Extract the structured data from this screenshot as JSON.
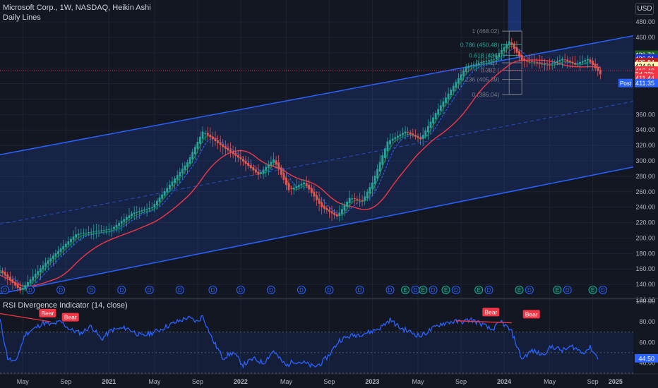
{
  "header": {
    "title": "Microsoft Corp., 1W, NASDAQ, Heikin Ashi",
    "subtitle": "Daily Lines",
    "currency": "USD"
  },
  "rsi_panel": {
    "title": "RSI Divergence Indicator (14, close)",
    "bear_label": "Bear"
  },
  "fib_labels": {
    "level_1": "1 (468.02)",
    "level_0786": "0.786 (450.48)",
    "level_0618": "0.618 (436.",
    "level_05": "0.5 (427.",
    "level_0382": "0.382 (",
    "level_0236": "0.236 (405.39)",
    "level_0": "0 (386.04)"
  },
  "price_badges": [
    {
      "text": "430.72",
      "bg": "#1b5e20",
      "fg": "#ffffff",
      "price": 437.5
    },
    {
      "text": "426.31",
      "bg": "#1e2fd6",
      "fg": "#ffffff",
      "price": 432.6
    },
    {
      "text": "425.84",
      "bg": "#b71c1c",
      "fg": "#ffffff",
      "price": 427.8
    },
    {
      "text": "424.94",
      "bg": "#fff3b0",
      "fg": "#000000",
      "price": 422.8
    },
    {
      "text": "412.48",
      "bg": "#f23645",
      "fg": "#ffffff",
      "price": 417.0
    },
    {
      "text": "2d 23h",
      "bg": "#f23645",
      "fg": "#ffffff",
      "price": 412.2
    },
    {
      "text": "411.44",
      "bg": "#f23645",
      "fg": "#ffffff",
      "price": 407.3
    }
  ],
  "post_badge": {
    "tag": "Post",
    "value": "411.35",
    "price": 400.8
  },
  "rsi_badge": {
    "text": "44.50",
    "value": 44.5
  },
  "event_markers": {
    "dividend": "D",
    "earnings": "E"
  },
  "chart_data": [
    {
      "type": "candlestick",
      "title": "Microsoft Corp., 1W, NASDAQ, Heikin Ashi",
      "ylim": [
        120,
        480
      ],
      "y_ticks": [
        120,
        140,
        160,
        180,
        200,
        220,
        240,
        260,
        280,
        300,
        320,
        340,
        360,
        380,
        400,
        420,
        440,
        460,
        480
      ],
      "x_ticks": [
        "May",
        "Sep",
        "2021",
        "May",
        "Sep",
        "2022",
        "May",
        "Sep",
        "2023",
        "May",
        "Sep",
        "2024",
        "May",
        "Sep",
        "2025"
      ],
      "anchors": [
        [
          0,
          158
        ],
        [
          8,
          132
        ],
        [
          18,
          168
        ],
        [
          30,
          205
        ],
        [
          44,
          212
        ],
        [
          52,
          232
        ],
        [
          60,
          240
        ],
        [
          74,
          298
        ],
        [
          80,
          338
        ],
        [
          88,
          318
        ],
        [
          95,
          302
        ],
        [
          102,
          282
        ],
        [
          108,
          302
        ],
        [
          114,
          262
        ],
        [
          120,
          272
        ],
        [
          127,
          240
        ],
        [
          133,
          228
        ],
        [
          138,
          252
        ],
        [
          143,
          248
        ],
        [
          147,
          272
        ],
        [
          153,
          325
        ],
        [
          160,
          338
        ],
        [
          166,
          328
        ],
        [
          172,
          362
        ],
        [
          178,
          392
        ],
        [
          184,
          422
        ],
        [
          190,
          428
        ],
        [
          195,
          432
        ],
        [
          201,
          455
        ],
        [
          206,
          430
        ],
        [
          211,
          428
        ],
        [
          217,
          425
        ],
        [
          222,
          432
        ],
        [
          227,
          425
        ],
        [
          232,
          432
        ],
        [
          237,
          412
        ]
      ],
      "series": [
        {
          "name": "",
          "color": "#2962ff",
          "lag": 6
        },
        {
          "name": "",
          "color": "#1e7e34",
          "lag": 3
        },
        {
          "name": "",
          "color": "#f23645",
          "lag": 20
        }
      ],
      "channel": {
        "upper": [
          [
            0,
            308
          ],
          [
            250,
            462
          ]
        ],
        "lower": [
          [
            0,
            128
          ],
          [
            250,
            292
          ]
        ]
      },
      "fibonacci": {
        "high": 468.02,
        "low": 386.04,
        "levels": [
          1,
          0.786,
          0.618,
          0.5,
          0.382,
          0.236,
          0
        ]
      },
      "dividend_weeks": [
        2,
        12,
        24,
        36,
        48,
        59,
        71,
        84,
        95,
        107,
        119,
        130,
        142,
        154
      ],
      "earnings_weeks": [
        160,
        167,
        176,
        189,
        205,
        220,
        234
      ],
      "extra_dividend_weeks": [
        164,
        171,
        180,
        193,
        209,
        224,
        238
      ]
    },
    {
      "type": "line",
      "title": "RSI Divergence Indicator (14, close)",
      "ylim": [
        30,
        100
      ],
      "y_ticks": [
        40,
        60,
        80,
        100
      ],
      "bands": [
        30,
        70
      ],
      "anchors": [
        [
          0,
          82
        ],
        [
          3,
          45
        ],
        [
          6,
          40
        ],
        [
          10,
          68
        ],
        [
          14,
          74
        ],
        [
          17,
          79
        ],
        [
          20,
          77
        ],
        [
          24,
          80
        ],
        [
          28,
          72
        ],
        [
          32,
          69
        ],
        [
          36,
          76
        ],
        [
          40,
          63
        ],
        [
          44,
          72
        ],
        [
          50,
          74
        ],
        [
          56,
          66
        ],
        [
          62,
          71
        ],
        [
          68,
          78
        ],
        [
          74,
          84
        ],
        [
          78,
          80
        ],
        [
          80,
          86
        ],
        [
          84,
          62
        ],
        [
          88,
          45
        ],
        [
          92,
          50
        ],
        [
          96,
          38
        ],
        [
          100,
          44
        ],
        [
          104,
          40
        ],
        [
          108,
          52
        ],
        [
          110,
          45
        ],
        [
          113,
          37
        ],
        [
          116,
          42
        ],
        [
          120,
          40
        ],
        [
          124,
          36
        ],
        [
          127,
          40
        ],
        [
          130,
          48
        ],
        [
          134,
          62
        ],
        [
          138,
          66
        ],
        [
          142,
          68
        ],
        [
          146,
          70
        ],
        [
          150,
          74
        ],
        [
          154,
          82
        ],
        [
          158,
          74
        ],
        [
          162,
          70
        ],
        [
          166,
          66
        ],
        [
          170,
          72
        ],
        [
          174,
          78
        ],
        [
          178,
          80
        ],
        [
          182,
          80
        ],
        [
          186,
          82
        ],
        [
          190,
          78
        ],
        [
          194,
          72
        ],
        [
          198,
          80
        ],
        [
          202,
          70
        ],
        [
          206,
          44
        ],
        [
          210,
          52
        ],
        [
          214,
          48
        ],
        [
          218,
          56
        ],
        [
          222,
          52
        ],
        [
          226,
          56
        ],
        [
          230,
          50
        ],
        [
          233,
          55
        ],
        [
          236,
          45
        ]
      ],
      "divergences": [
        {
          "from": [
            0,
            88
          ],
          "to": [
            20,
            80
          ],
          "label": "Bear"
        },
        {
          "from": [
            180,
            81
          ],
          "to": [
            202,
            79
          ],
          "label": "Bear"
        }
      ]
    }
  ]
}
